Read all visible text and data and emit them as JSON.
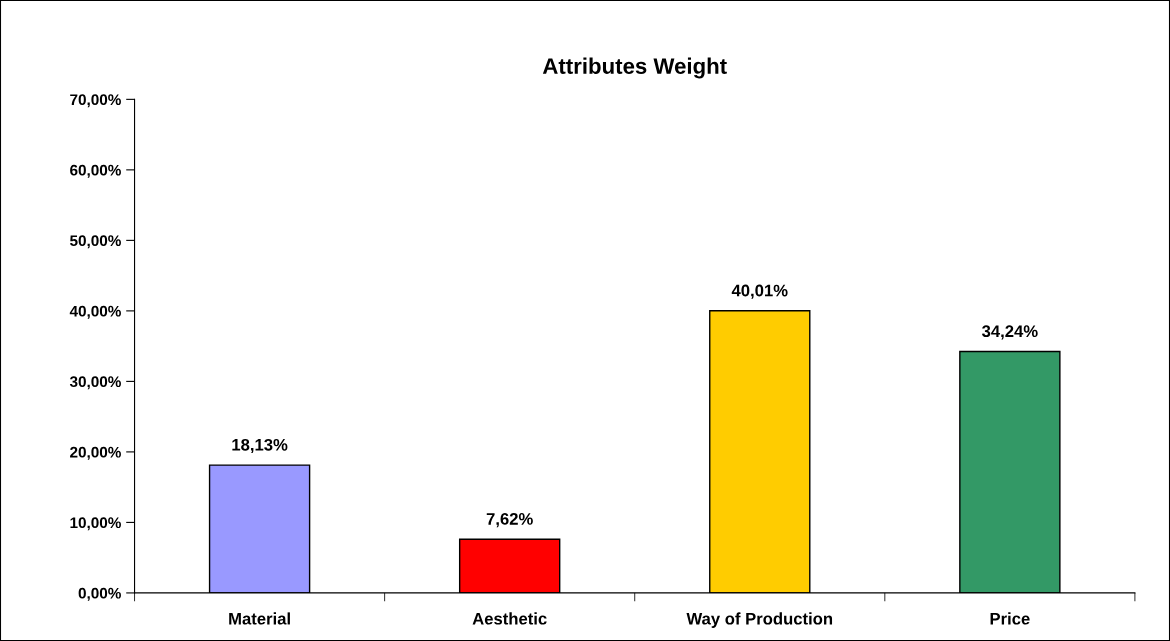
{
  "chart_data": {
    "type": "bar",
    "title": "Attributes Weight",
    "categories": [
      "Material",
      "Aesthetic",
      "Way of Production",
      "Price"
    ],
    "values": [
      18.13,
      7.62,
      40.01,
      34.24
    ],
    "colors": [
      "#9999ff",
      "#ff0000",
      "#ffcc00",
      "#339966"
    ],
    "value_labels": [
      "18,13%",
      "7,62%",
      "40,01%",
      "34,24%"
    ],
    "ylim": [
      0,
      70
    ],
    "yticks": [
      {
        "value": 0,
        "label": "0,00%"
      },
      {
        "value": 10,
        "label": "10,00%"
      },
      {
        "value": 20,
        "label": "20,00%"
      },
      {
        "value": 30,
        "label": "30,00%"
      },
      {
        "value": 40,
        "label": "40,00%"
      },
      {
        "value": 50,
        "label": "50,00%"
      },
      {
        "value": 60,
        "label": "60,00%"
      },
      {
        "value": 70,
        "label": "70,00%"
      }
    ],
    "grid": false,
    "legend": false
  }
}
